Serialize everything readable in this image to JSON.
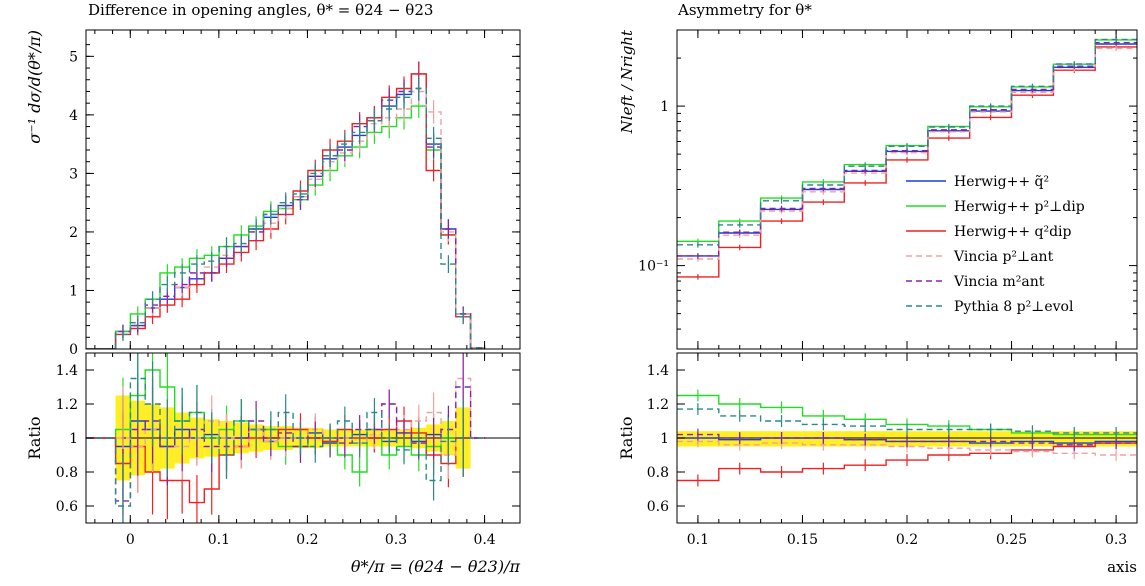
{
  "chart_data": [
    {
      "type": "line",
      "title": "Difference in opening angles, θ* = θ24 − θ23",
      "xlabel": "θ*/π = (θ24 − θ23)/π",
      "ylabel": "σ⁻¹ dσ/d(θ*/π)",
      "ratio_ylabel": "Ratio",
      "xlim": [
        -0.05,
        0.44
      ],
      "ylim": [
        0,
        5.45
      ],
      "ratio_ylim": [
        0.5,
        1.5
      ],
      "xticks": [
        "0",
        "0.1",
        "0.2",
        "0.3",
        "0.4"
      ],
      "yticks": [
        "0",
        "1",
        "2",
        "3",
        "4",
        "5"
      ],
      "ratio_yticks": [
        "0.6",
        "0.8",
        "1",
        "1.2",
        "1.4"
      ],
      "series": [
        {
          "name": "Herwig++ q̃²",
          "color": "#1f3fd0",
          "dash": false,
          "values": [
            0.0,
            0.0,
            0.3,
            0.4,
            0.7,
            0.85,
            1.05,
            1.2,
            1.3,
            1.55,
            1.75,
            2.05,
            2.25,
            2.45,
            2.6,
            2.95,
            3.25,
            3.45,
            3.65,
            3.95,
            4.15,
            4.35,
            4.7,
            3.5,
            2.05,
            0.6,
            0.02
          ],
          "ratio": [
            1.0,
            1.0,
            0.95,
            1.1,
            1.05,
            0.95,
            1.05,
            1.0,
            1.02,
            1.0,
            1.0,
            1.05,
            0.98,
            1.0,
            1.0,
            1.03,
            0.97,
            1.0,
            1.02,
            1.0,
            0.98,
            1.03,
            0.98,
            1.02,
            1.0,
            1.0,
            1.0
          ]
        },
        {
          "name": "Herwig++ p²⊥dip",
          "color": "#22dd22",
          "dash": false,
          "values": [
            0.0,
            0.0,
            0.3,
            0.6,
            0.85,
            1.3,
            1.4,
            1.55,
            1.6,
            1.75,
            1.95,
            2.1,
            2.35,
            2.4,
            2.55,
            2.8,
            3.05,
            3.3,
            3.45,
            3.7,
            3.8,
            3.95,
            4.15,
            3.4,
            1.95,
            0.6,
            0.02
          ],
          "ratio": [
            1.0,
            1.0,
            1.05,
            1.25,
            1.4,
            1.3,
            1.1,
            1.15,
            1.0,
            1.05,
            1.1,
            1.05,
            1.05,
            0.95,
            0.95,
            1.0,
            0.98,
            0.9,
            0.8,
            1.05,
            0.9,
            0.95,
            0.9,
            0.95,
            1.0,
            1.0,
            1.0
          ]
        },
        {
          "name": "Herwig++ q²dip",
          "color": "#ee2222",
          "dash": false,
          "values": [
            0.0,
            0.0,
            0.25,
            0.35,
            0.55,
            0.75,
            0.85,
            1.1,
            1.3,
            1.45,
            1.65,
            1.85,
            2.05,
            2.3,
            2.7,
            3.05,
            3.4,
            3.55,
            3.85,
            3.95,
            4.3,
            4.45,
            4.7,
            3.05,
            1.95,
            0.55,
            0.02
          ],
          "ratio": [
            1.0,
            1.0,
            0.85,
            0.95,
            0.8,
            0.75,
            0.75,
            0.62,
            0.7,
            0.9,
            0.95,
            1.0,
            1.0,
            1.05,
            1.05,
            1.0,
            0.98,
            1.05,
            1.0,
            1.0,
            1.05,
            1.1,
            1.03,
            0.9,
            0.85,
            1.0,
            1.0
          ]
        },
        {
          "name": "Vincia p²⊥ant",
          "color": "#f4a0a0",
          "dash": true,
          "values": [
            0.0,
            0.0,
            0.3,
            0.45,
            0.7,
            0.9,
            1.05,
            1.3,
            1.4,
            1.6,
            1.75,
            2.0,
            2.15,
            2.4,
            2.6,
            2.9,
            3.2,
            3.35,
            3.55,
            3.85,
            3.95,
            4.1,
            4.4,
            4.05,
            2.0,
            0.6,
            0.02
          ],
          "ratio": [
            1.0,
            1.0,
            1.0,
            0.95,
            1.05,
            1.0,
            0.95,
            1.0,
            1.1,
            1.0,
            0.95,
            1.05,
            0.98,
            1.0,
            1.0,
            1.05,
            1.0,
            1.0,
            0.97,
            1.02,
            1.2,
            1.05,
            1.1,
            1.15,
            0.9,
            1.35,
            1.0
          ]
        },
        {
          "name": "Vincia m²ant",
          "color": "#8822aa",
          "dash": true,
          "values": [
            0.0,
            0.0,
            0.3,
            0.4,
            0.75,
            0.9,
            1.1,
            1.3,
            1.3,
            1.55,
            1.75,
            2.0,
            2.3,
            2.45,
            2.55,
            2.95,
            3.3,
            3.4,
            3.8,
            3.9,
            4.25,
            4.4,
            4.45,
            3.45,
            2.05,
            0.6,
            0.02
          ],
          "ratio": [
            1.0,
            1.0,
            0.63,
            1.05,
            1.1,
            0.95,
            1.0,
            1.05,
            0.95,
            0.95,
            1.0,
            1.1,
            1.0,
            1.03,
            0.95,
            1.0,
            1.0,
            0.97,
            1.05,
            1.05,
            1.2,
            1.03,
            0.97,
            1.0,
            1.05,
            1.3,
            1.0
          ]
        },
        {
          "name": "Pythia 8 p²⊥evol",
          "color": "#2a8a8a",
          "dash": true,
          "values": [
            0.0,
            0.0,
            0.25,
            0.45,
            0.85,
            1.1,
            1.3,
            1.45,
            1.5,
            1.75,
            1.8,
            2.05,
            2.3,
            2.5,
            2.65,
            3.0,
            3.3,
            3.5,
            3.7,
            3.9,
            4.1,
            4.3,
            4.45,
            3.6,
            1.45,
            0.55,
            0.02
          ],
          "ratio": [
            1.0,
            1.0,
            0.6,
            1.35,
            1.2,
            1.0,
            1.1,
            1.15,
            1.0,
            0.9,
            1.1,
            1.05,
            1.05,
            1.15,
            1.0,
            0.95,
            1.0,
            1.1,
            0.97,
            1.15,
            1.0,
            0.93,
            1.0,
            0.75,
            0.98,
            1.0,
            1.0
          ]
        }
      ]
    },
    {
      "type": "line",
      "title": "Asymmetry for θ*",
      "xlabel": "axis",
      "ylabel": "Nleft / Nright",
      "ratio_ylabel": "Ratio",
      "yscale": "log",
      "xlim": [
        0.09,
        0.31
      ],
      "ylim": [
        0.03,
        3.0
      ],
      "ratio_ylim": [
        0.5,
        1.5
      ],
      "xticks": [
        "0.1",
        "0.15",
        "0.2",
        "0.25",
        "0.3"
      ],
      "yticks": [
        "10⁻¹",
        "1"
      ],
      "ratio_yticks": [
        "0.6",
        "0.8",
        "1",
        "1.2",
        "1.4"
      ],
      "legend_position": "right",
      "series": [
        {
          "name": "Herwig++ q̃²",
          "color": "#1f3fd0",
          "dash": false,
          "values": [
            0.115,
            0.16,
            0.225,
            0.3,
            0.39,
            0.52,
            0.7,
            0.93,
            1.25,
            1.75,
            2.45
          ],
          "ratio": [
            1.0,
            0.99,
            1.0,
            1.0,
            0.99,
            0.98,
            0.98,
            0.97,
            0.98,
            0.97,
            0.98
          ]
        },
        {
          "name": "Herwig++ p²⊥dip",
          "color": "#22dd22",
          "dash": false,
          "values": [
            0.142,
            0.19,
            0.265,
            0.335,
            0.43,
            0.565,
            0.745,
            0.99,
            1.32,
            1.83,
            2.6
          ],
          "ratio": [
            1.25,
            1.2,
            1.18,
            1.13,
            1.11,
            1.08,
            1.07,
            1.05,
            1.03,
            1.02,
            1.02
          ]
        },
        {
          "name": "Herwig++ q²dip",
          "color": "#ee2222",
          "dash": false,
          "values": [
            0.085,
            0.13,
            0.19,
            0.25,
            0.33,
            0.46,
            0.63,
            0.85,
            1.17,
            1.68,
            2.35
          ],
          "ratio": [
            0.75,
            0.82,
            0.8,
            0.82,
            0.84,
            0.87,
            0.9,
            0.91,
            0.93,
            0.95,
            0.97
          ]
        },
        {
          "name": "Vincia p²⊥ant",
          "color": "#f4a0a0",
          "dash": true,
          "values": [
            0.11,
            0.155,
            0.22,
            0.29,
            0.38,
            0.51,
            0.69,
            0.92,
            1.22,
            1.7,
            2.3
          ],
          "ratio": [
            0.98,
            0.96,
            0.97,
            0.96,
            0.96,
            0.95,
            0.94,
            0.93,
            0.92,
            0.91,
            0.9
          ]
        },
        {
          "name": "Vincia m²ant",
          "color": "#8822aa",
          "dash": true,
          "values": [
            0.115,
            0.162,
            0.228,
            0.305,
            0.395,
            0.525,
            0.71,
            0.95,
            1.27,
            1.78,
            2.5
          ],
          "ratio": [
            1.02,
            1.0,
            1.0,
            1.0,
            0.99,
            0.98,
            0.98,
            0.98,
            0.97,
            0.96,
            0.97
          ]
        },
        {
          "name": "Pythia 8 p²⊥evol",
          "color": "#2a8a8a",
          "dash": true,
          "values": [
            0.135,
            0.18,
            0.255,
            0.32,
            0.42,
            0.56,
            0.74,
            1.0,
            1.33,
            1.84,
            2.62
          ],
          "ratio": [
            1.17,
            1.13,
            1.1,
            1.08,
            1.07,
            1.05,
            1.05,
            1.05,
            1.04,
            1.03,
            1.03
          ]
        }
      ]
    }
  ]
}
